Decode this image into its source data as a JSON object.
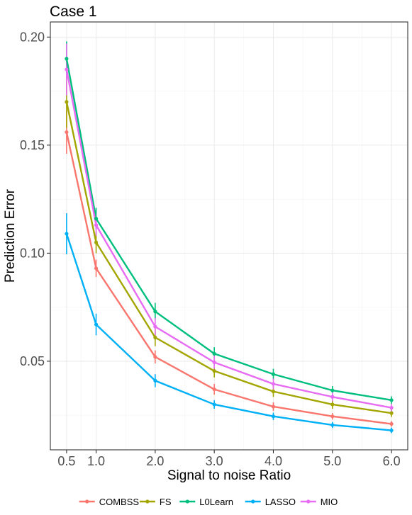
{
  "chart_data": {
    "type": "line",
    "title": "Case 1",
    "xlabel": "Signal to noise Ratio",
    "ylabel": "Prediction Error",
    "x": [
      0.5,
      1.0,
      2.0,
      3.0,
      4.0,
      5.0,
      6.0
    ],
    "x_tick_labels": [
      "0.5",
      "1.0",
      "2.0",
      "3.0",
      "4.0",
      "5.0",
      "6.0"
    ],
    "y_ticks": [
      0.05,
      0.1,
      0.15,
      0.2
    ],
    "y_tick_labels": [
      "0.05",
      "0.10",
      "0.15",
      "0.20"
    ],
    "xlim": [
      0.225,
      6.275
    ],
    "ylim": [
      0.009,
      0.207
    ],
    "grid": true,
    "legend_position": "bottom",
    "series": [
      {
        "name": "COMBSS",
        "color": "#F8766D",
        "values": [
          0.156,
          0.093,
          0.052,
          0.037,
          0.029,
          0.0245,
          0.021
        ],
        "err": [
          0.01,
          0.004,
          0.003,
          0.0025,
          0.002,
          0.0015,
          0.0013
        ]
      },
      {
        "name": "FS",
        "color": "#A3A500",
        "values": [
          0.17,
          0.105,
          0.061,
          0.0455,
          0.036,
          0.03,
          0.026
        ],
        "err": [
          0.012,
          0.005,
          0.004,
          0.003,
          0.0025,
          0.002,
          0.0018
        ]
      },
      {
        "name": "L0Learn",
        "color": "#00BF7D",
        "values": [
          0.19,
          0.116,
          0.073,
          0.0535,
          0.044,
          0.0365,
          0.032
        ],
        "err": [
          0.008,
          0.005,
          0.004,
          0.003,
          0.0025,
          0.002,
          0.0018
        ]
      },
      {
        "name": "LASSO",
        "color": "#00B0F6",
        "values": [
          0.109,
          0.067,
          0.041,
          0.03,
          0.0245,
          0.0205,
          0.018
        ],
        "err": [
          0.0095,
          0.005,
          0.003,
          0.002,
          0.0017,
          0.0014,
          0.0013
        ]
      },
      {
        "name": "MIO",
        "color": "#E76BF3",
        "values": [
          0.185,
          0.113,
          0.066,
          0.0495,
          0.0395,
          0.0335,
          0.0285
        ],
        "err": [
          0.012,
          0.005,
          0.004,
          0.003,
          0.0025,
          0.002,
          0.0018
        ]
      }
    ]
  }
}
